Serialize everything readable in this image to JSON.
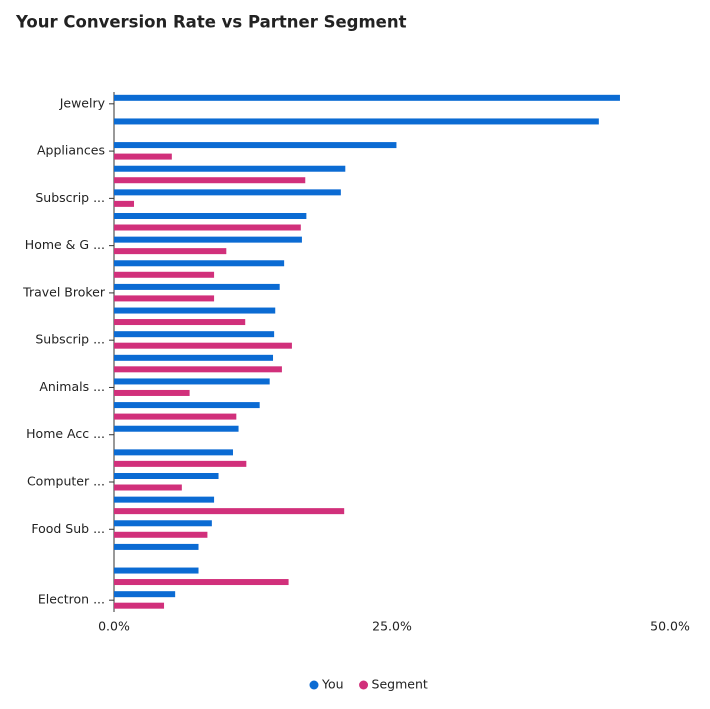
{
  "chart_data": {
    "type": "hbar",
    "title": "Your Conversion Rate vs Partner Segment",
    "categories": [
      "Jewelry",
      null,
      "Appliances",
      null,
      "Subscrip ...",
      null,
      "Home & G ...",
      null,
      "Travel Broker",
      null,
      "Subscrip ...",
      null,
      "Animals ...",
      null,
      "Home Acc ...",
      null,
      "Computer ...",
      null,
      "Food Sub ...",
      null,
      null,
      "Electron ..."
    ],
    "series": [
      {
        "name": "You",
        "color": "#0b6bd3",
        "values": [
          45.5,
          43.6,
          25.4,
          20.8,
          20.4,
          17.3,
          16.9,
          15.3,
          14.9,
          14.5,
          14.4,
          14.3,
          14.0,
          13.1,
          11.2,
          10.7,
          9.4,
          9.0,
          8.8,
          7.6,
          7.6,
          5.5
        ]
      },
      {
        "name": "Segment",
        "color": "#d1307b",
        "values": [
          null,
          null,
          5.2,
          17.2,
          1.8,
          16.8,
          10.1,
          9.0,
          9.0,
          11.8,
          16.0,
          15.1,
          6.8,
          11.0,
          null,
          11.9,
          6.1,
          20.7,
          8.4,
          null,
          15.7,
          4.5
        ]
      }
    ],
    "xlim": [
      0,
      50
    ],
    "xticks": [
      {
        "value": 0,
        "label": "0.0%"
      },
      {
        "value": 25,
        "label": "25.0%"
      },
      {
        "value": 50,
        "label": "50.0%"
      }
    ],
    "legend": "bottom"
  }
}
